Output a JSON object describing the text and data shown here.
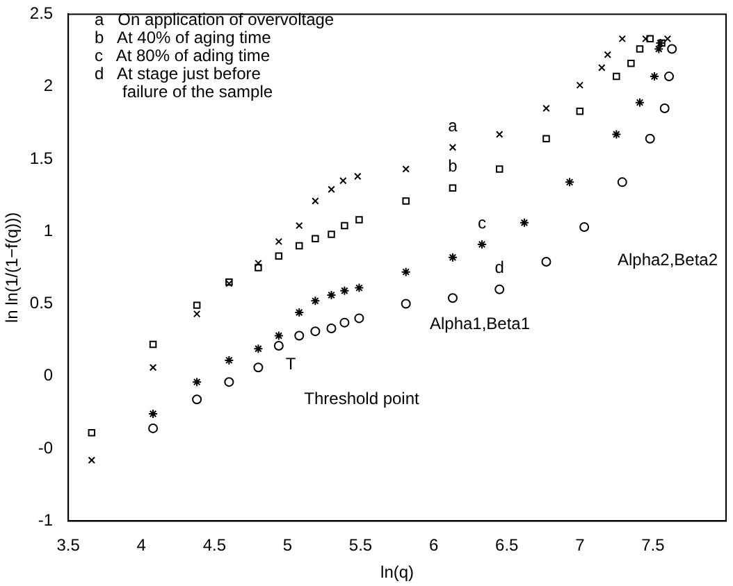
{
  "chart_data": {
    "type": "scatter",
    "xlabel": "ln(q)",
    "ylabel": "ln ln(1/(1−f(q)))",
    "xlim": [
      3.5,
      8
    ],
    "ylim": [
      -1,
      2.5
    ],
    "xticks": [
      3.5,
      4,
      4.5,
      5,
      5.5,
      6,
      6.5,
      7,
      7.5
    ],
    "yticks": [
      {
        "value": -1,
        "label": "-1"
      },
      {
        "value": -0.5,
        "label": "-0"
      },
      0,
      0.5,
      1,
      1.5,
      2,
      2.5
    ],
    "grid": false,
    "legend": false,
    "series": [
      {
        "marker": "cross",
        "color": "#000000",
        "x": [
          3.66,
          4.08,
          4.38,
          4.6,
          4.8,
          4.94,
          5.08,
          5.19,
          5.3,
          5.38,
          5.48,
          5.81,
          6.13,
          6.45,
          6.77,
          7.0,
          7.15,
          7.19,
          7.29,
          7.45,
          7.6
        ],
        "values": [
          -0.58,
          0.06,
          0.43,
          0.64,
          0.78,
          0.93,
          1.04,
          1.21,
          1.29,
          1.35,
          1.38,
          1.43,
          1.58,
          1.67,
          1.85,
          2.01,
          2.13,
          2.22,
          2.33,
          2.33,
          2.33
        ]
      },
      {
        "marker": "square",
        "color": "#000000",
        "x": [
          3.66,
          4.08,
          4.38,
          4.6,
          4.8,
          4.94,
          5.08,
          5.19,
          5.3,
          5.39,
          5.49,
          5.81,
          6.13,
          6.45,
          6.77,
          7.0,
          7.25,
          7.35,
          7.41,
          7.48,
          7.56
        ],
        "values": [
          -0.39,
          0.22,
          0.49,
          0.65,
          0.75,
          0.83,
          0.9,
          0.95,
          0.98,
          1.04,
          1.08,
          1.21,
          1.3,
          1.43,
          1.64,
          1.83,
          2.07,
          2.16,
          2.26,
          2.33,
          2.3
        ]
      },
      {
        "color": "#000000",
        "x": [
          4.08,
          4.38,
          4.6,
          4.8,
          4.94,
          5.08,
          5.19,
          5.3,
          5.39,
          5.49,
          5.81,
          6.13,
          6.33,
          6.62,
          6.93,
          7.25,
          7.41,
          7.51,
          7.54,
          7.55
        ],
        "values": [
          -0.26,
          -0.04,
          0.11,
          0.19,
          0.28,
          0.44,
          0.52,
          0.56,
          0.59,
          0.61,
          0.72,
          0.82,
          0.91,
          1.06,
          1.34,
          1.67,
          1.89,
          2.07,
          2.26,
          2.3
        ]
      },
      {
        "marker": "circle",
        "color": "#000000",
        "x": [
          4.08,
          4.38,
          4.6,
          4.8,
          4.94,
          5.08,
          5.19,
          5.3,
          5.39,
          5.49,
          5.81,
          6.13,
          6.45,
          6.77,
          7.03,
          7.29,
          7.48,
          7.58,
          7.61,
          7.63
        ],
        "values": [
          -0.36,
          -0.16,
          -0.04,
          0.06,
          0.21,
          0.28,
          0.31,
          0.33,
          0.37,
          0.4,
          0.5,
          0.54,
          0.6,
          0.79,
          1.03,
          1.34,
          1.64,
          1.85,
          2.07,
          2.26
        ]
      }
    ],
    "annotations": [
      "a   On application of overvoltage",
      "b   At 40% of aging time",
      "c   At 80% of ading time",
      "d   At stage just before\n      failure of the sample",
      {
        "text": "a",
        "x": 6.13,
        "y": 1.58
      },
      {
        "text": "b",
        "x": 6.13,
        "y": 1.3
      },
      {
        "text": "c",
        "x": 6.33,
        "y": 0.91
      },
      {
        "text": "d",
        "x": 6.45,
        "y": 0.6
      },
      "Alpha1,Beta1",
      "Alpha2,Beta2",
      "T",
      "Threshold point"
    ]
  }
}
